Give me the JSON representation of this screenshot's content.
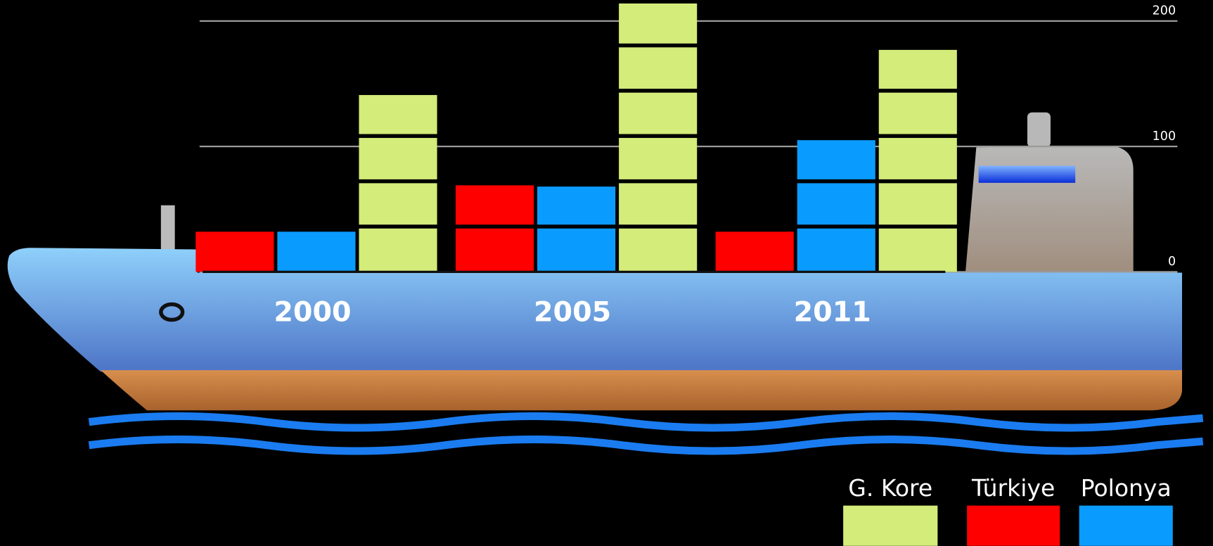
{
  "chart_data": {
    "type": "bar",
    "categories": [
      "2000",
      "2005",
      "2011"
    ],
    "series": [
      {
        "name": "Türkiye",
        "color": "#ff0000",
        "values": [
          32,
          69,
          32
        ]
      },
      {
        "name": "Polonya",
        "color": "#0a9bff",
        "values": [
          32,
          68,
          105
        ]
      },
      {
        "name": "G. Kore",
        "color": "#d3ec7a",
        "values": [
          141,
          214,
          177
        ]
      }
    ],
    "legend_order": [
      "G. Kore",
      "Türkiye",
      "Polonya"
    ],
    "legend_position": "lower right",
    "ylim": [
      0,
      200
    ],
    "yticks": [
      0,
      100,
      200
    ],
    "grid": true
  }
}
